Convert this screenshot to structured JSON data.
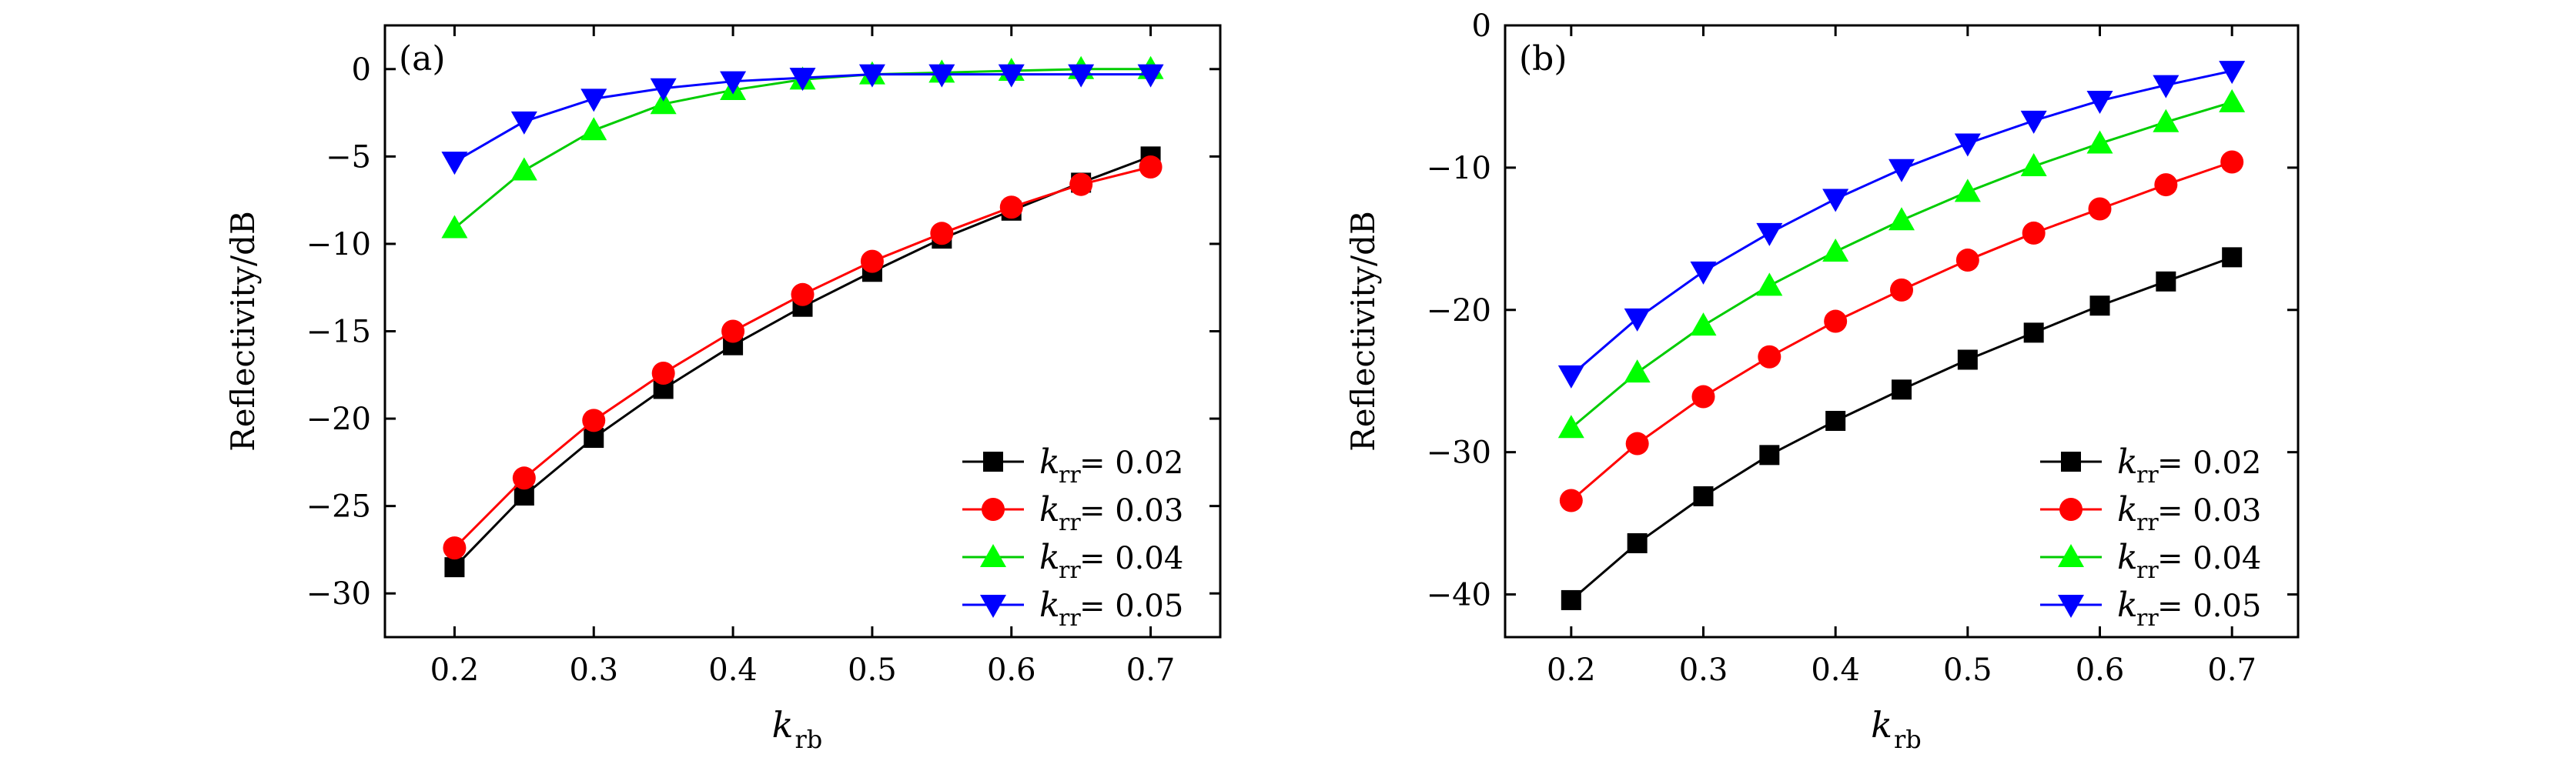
{
  "chart_data": [
    {
      "type": "line",
      "panel_label": "(a)",
      "ylabel": "Reflectivity/dB",
      "xlabel_main": "k",
      "xlabel_sub": "rb",
      "xlim": [
        0.15,
        0.75
      ],
      "ylim": [
        -32.5,
        2.5
      ],
      "xticks": [
        0.2,
        0.3,
        0.4,
        0.5,
        0.6,
        0.7
      ],
      "xtick_labels": [
        "0.2",
        "0.3",
        "0.4",
        "0.5",
        "0.6",
        "0.7"
      ],
      "yticks": [
        0,
        -5,
        -10,
        -15,
        -20,
        -25,
        -30
      ],
      "ytick_labels": [
        "0",
        "−5",
        "−10",
        "−15",
        "−20",
        "−25",
        "−30"
      ],
      "legend_position": "bottom-right",
      "x": [
        0.2,
        0.25,
        0.3,
        0.35,
        0.4,
        0.45,
        0.5,
        0.55,
        0.6,
        0.65,
        0.7
      ],
      "series": [
        {
          "name": "k_rr = 0.02",
          "label_var": "k",
          "label_sub": "rr",
          "label_val": " = 0.02",
          "marker": "square",
          "color": "#000000",
          "values": [
            -28.5,
            -24.4,
            -21.1,
            -18.3,
            -15.8,
            -13.6,
            -11.6,
            -9.7,
            -8.1,
            -6.5,
            -5.0
          ]
        },
        {
          "name": "k_rr = 0.03",
          "label_var": "k",
          "label_sub": "rr",
          "label_val": " = 0.03",
          "marker": "circle",
          "color": "#ff0000",
          "values": [
            -27.4,
            -23.4,
            -20.1,
            -17.4,
            -15.0,
            -12.9,
            -11.0,
            -9.4,
            -7.9,
            -6.6,
            -5.6
          ]
        },
        {
          "name": "k_rr = 0.04",
          "label_var": "k",
          "label_sub": "rr",
          "label_val": " = 0.04",
          "marker": "triangle-up",
          "color": "#00ff00",
          "values": [
            -9.1,
            -5.8,
            -3.5,
            -2.0,
            -1.2,
            -0.6,
            -0.3,
            -0.2,
            -0.1,
            0.0,
            0.0
          ]
        },
        {
          "name": "k_rr = 0.05",
          "label_var": "k",
          "label_sub": "rr",
          "label_val": " = 0.05",
          "marker": "triangle-down",
          "color": "#0000ff",
          "values": [
            -5.3,
            -3.0,
            -1.7,
            -1.1,
            -0.7,
            -0.5,
            -0.3,
            -0.3,
            -0.3,
            -0.3,
            -0.3
          ]
        }
      ]
    },
    {
      "type": "line",
      "panel_label": "(b)",
      "ylabel": "Reflectivity/dB",
      "xlabel_main": "k",
      "xlabel_sub": "rb",
      "xlim": [
        0.15,
        0.75
      ],
      "ylim": [
        -43,
        0
      ],
      "xticks": [
        0.2,
        0.3,
        0.4,
        0.5,
        0.6,
        0.7
      ],
      "xtick_labels": [
        "0.2",
        "0.3",
        "0.4",
        "0.5",
        "0.6",
        "0.7"
      ],
      "yticks": [
        0,
        -10,
        -20,
        -30,
        -40
      ],
      "ytick_labels": [
        "0",
        "−10",
        "−20",
        "−30",
        "−40"
      ],
      "legend_position": "bottom-right",
      "x": [
        0.2,
        0.25,
        0.3,
        0.35,
        0.4,
        0.45,
        0.5,
        0.55,
        0.6,
        0.65,
        0.7
      ],
      "series": [
        {
          "name": "k_rr = 0.02",
          "label_var": "k",
          "label_sub": "rr",
          "label_val": " = 0.02",
          "marker": "square",
          "color": "#000000",
          "values": [
            -40.4,
            -36.4,
            -33.1,
            -30.2,
            -27.8,
            -25.6,
            -23.5,
            -21.6,
            -19.7,
            -18.0,
            -16.3
          ]
        },
        {
          "name": "k_rr = 0.03",
          "label_var": "k",
          "label_sub": "rr",
          "label_val": " = 0.03",
          "marker": "circle",
          "color": "#ff0000",
          "values": [
            -33.4,
            -29.4,
            -26.1,
            -23.3,
            -20.8,
            -18.6,
            -16.5,
            -14.6,
            -12.9,
            -11.2,
            -9.6
          ]
        },
        {
          "name": "k_rr = 0.04",
          "label_var": "k",
          "label_sub": "rr",
          "label_val": " = 0.04",
          "marker": "triangle-up",
          "color": "#00ff00",
          "values": [
            -28.3,
            -24.4,
            -21.1,
            -18.3,
            -15.9,
            -13.7,
            -11.7,
            -9.9,
            -8.3,
            -6.8,
            -5.4
          ]
        },
        {
          "name": "k_rr = 0.05",
          "label_var": "k",
          "label_sub": "rr",
          "label_val": " = 0.05",
          "marker": "triangle-down",
          "color": "#0000ff",
          "values": [
            -24.6,
            -20.6,
            -17.3,
            -14.6,
            -12.2,
            -10.1,
            -8.3,
            -6.7,
            -5.3,
            -4.2,
            -3.2
          ]
        }
      ]
    }
  ]
}
